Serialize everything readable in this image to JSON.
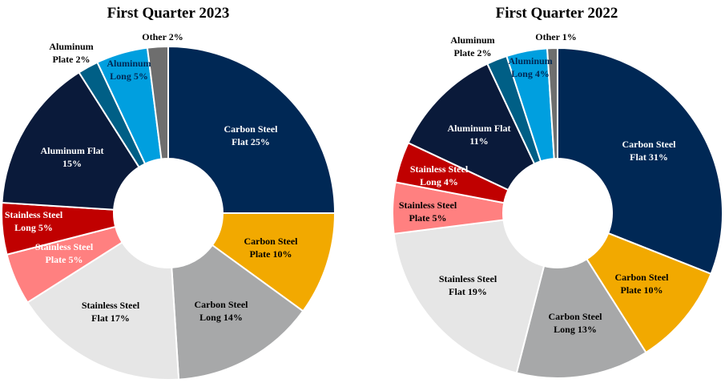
{
  "chart_data": [
    {
      "type": "pie",
      "title": "First Quarter 2023",
      "slices": [
        {
          "label_lines": [
            "Carbon Steel",
            "Flat 25%"
          ],
          "name": "Carbon Steel Flat",
          "value": 25,
          "color": "#002855",
          "text_color": "#ffffff"
        },
        {
          "label_lines": [
            "Carbon Steel",
            "Plate 10%"
          ],
          "name": "Carbon Steel Plate",
          "value": 10,
          "color": "#f2a900",
          "text_color": "#000000"
        },
        {
          "label_lines": [
            "Carbon Steel",
            "Long 14%"
          ],
          "name": "Carbon Steel Long",
          "value": 14,
          "color": "#a7a8a9",
          "text_color": "#000000"
        },
        {
          "label_lines": [
            "Stainless Steel",
            "Flat 17%"
          ],
          "name": "Stainless Steel Flat",
          "value": 17,
          "color": "#e6e6e6",
          "text_color": "#000000"
        },
        {
          "label_lines": [
            "Stainless Steel",
            "Plate 5%"
          ],
          "name": "Stainless Steel Plate",
          "value": 5,
          "color": "#ff8080",
          "text_color": "#ffffff"
        },
        {
          "label_lines": [
            "Stainless Steel",
            "Long  5%"
          ],
          "name": "Stainless Steel Long",
          "value": 5,
          "color": "#c00000",
          "text_color": "#ffffff"
        },
        {
          "label_lines": [
            "Aluminum Flat",
            "15%"
          ],
          "name": "Aluminum Flat",
          "value": 15,
          "color": "#0a1a3a",
          "text_color": "#ffffff"
        },
        {
          "label_lines": [
            "Aluminum",
            "Plate 2%"
          ],
          "name": "Aluminum Plate",
          "value": 2,
          "color": "#005f86",
          "text_color": "#000000"
        },
        {
          "label_lines": [
            "Aluminum",
            "Long 5%"
          ],
          "name": "Aluminum Long",
          "value": 5,
          "color": "#009fdf",
          "text_color": "#002855"
        },
        {
          "label_lines": [
            "Other 2%"
          ],
          "name": "Other",
          "value": 2,
          "color": "#6e6e6e",
          "text_color": "#000000"
        }
      ]
    },
    {
      "type": "pie",
      "title": "First Quarter 2022",
      "slices": [
        {
          "label_lines": [
            "Carbon Steel",
            "Flat 31%"
          ],
          "name": "Carbon Steel Flat",
          "value": 31,
          "color": "#002855",
          "text_color": "#ffffff"
        },
        {
          "label_lines": [
            "Carbon Steel",
            "Plate 10%"
          ],
          "name": "Carbon Steel Plate",
          "value": 10,
          "color": "#f2a900",
          "text_color": "#000000"
        },
        {
          "label_lines": [
            "Carbon Steel",
            "Long 13%"
          ],
          "name": "Carbon Steel Long",
          "value": 13,
          "color": "#a7a8a9",
          "text_color": "#000000"
        },
        {
          "label_lines": [
            "Stainless Steel",
            "Flat 19%"
          ],
          "name": "Stainless Steel Flat",
          "value": 19,
          "color": "#e6e6e6",
          "text_color": "#000000"
        },
        {
          "label_lines": [
            "Stainless Steel",
            "Plate 5%"
          ],
          "name": "Stainless Steel Plate",
          "value": 5,
          "color": "#ff8080",
          "text_color": "#000000"
        },
        {
          "label_lines": [
            "Stainless Steel",
            "Long  4%"
          ],
          "name": "Stainless Steel Long",
          "value": 4,
          "color": "#c00000",
          "text_color": "#ffffff"
        },
        {
          "label_lines": [
            "Aluminum Flat",
            "11%"
          ],
          "name": "Aluminum Flat",
          "value": 11,
          "color": "#0a1a3a",
          "text_color": "#ffffff"
        },
        {
          "label_lines": [
            "Aluminum",
            "Plate 2%"
          ],
          "name": "Aluminum Plate",
          "value": 2,
          "color": "#005f86",
          "text_color": "#000000"
        },
        {
          "label_lines": [
            "Aluminum",
            "Long 4%"
          ],
          "name": "Aluminum Long",
          "value": 4,
          "color": "#009fdf",
          "text_color": "#002855"
        },
        {
          "label_lines": [
            "Other 1%"
          ],
          "name": "Other",
          "value": 1,
          "color": "#6e6e6e",
          "text_color": "#000000"
        }
      ]
    }
  ]
}
